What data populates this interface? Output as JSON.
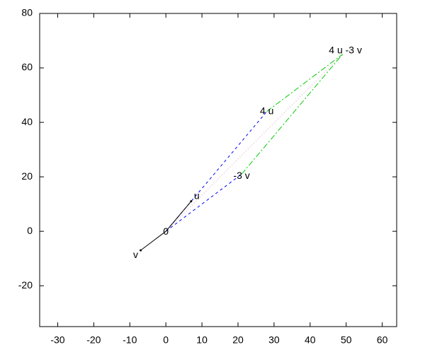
{
  "chart_data": {
    "type": "vector",
    "xlim": [
      -35,
      64
    ],
    "ylim": [
      -35,
      80
    ],
    "xticks": [
      -30,
      -20,
      -10,
      0,
      10,
      20,
      30,
      40,
      50,
      60
    ],
    "yticks": [
      -20,
      0,
      20,
      40,
      60,
      80
    ],
    "points": [
      {
        "label": "0",
        "x": 0,
        "y": 0
      },
      {
        "label": "u",
        "x": 7,
        "y": 11
      },
      {
        "label": "v",
        "x": -7,
        "y": -7
      },
      {
        "label": "4 u",
        "x": 28,
        "y": 44
      },
      {
        "label": "-3 v",
        "x": 21,
        "y": 21
      },
      {
        "label": "4 u -3 v",
        "x": 49,
        "y": 65
      }
    ]
  }
}
